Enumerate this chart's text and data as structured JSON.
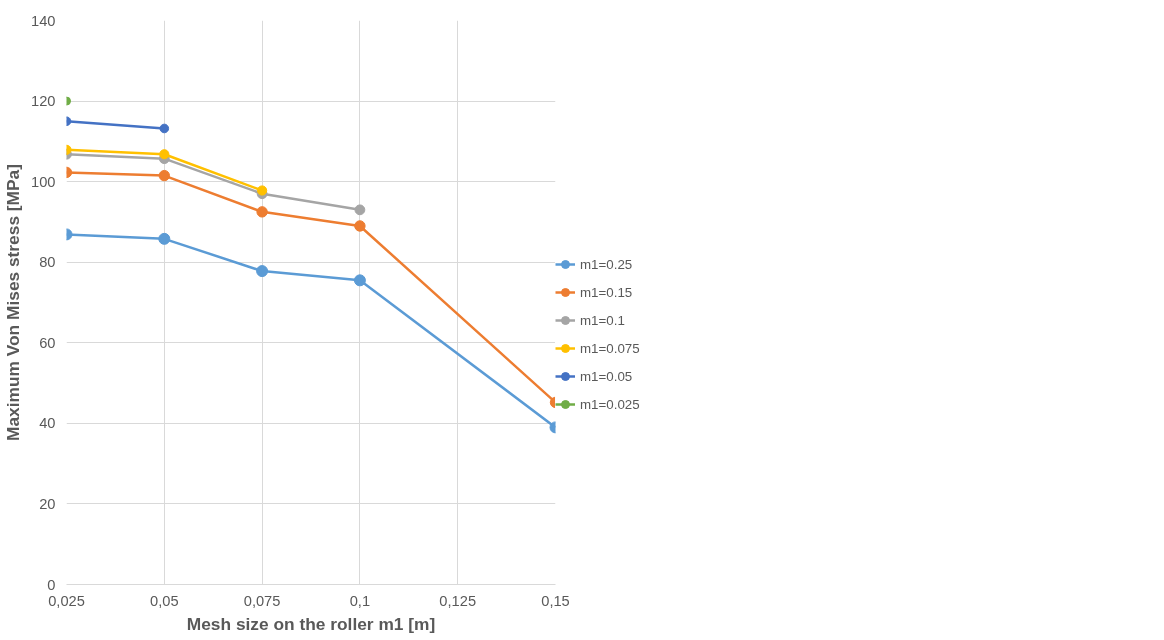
{
  "chart_data": {
    "type": "line",
    "xlabel": "Mesh size on the roller m1 [m]",
    "ylabel": "Maximum Von Mises stress [MPa]",
    "xlim": [
      0.025,
      0.15
    ],
    "xticks": [
      {
        "value": 0.025,
        "label": "0,025"
      },
      {
        "value": 0.05,
        "label": "0,05"
      },
      {
        "value": 0.075,
        "label": "0,075"
      },
      {
        "value": 0.1,
        "label": "0,1"
      },
      {
        "value": 0.125,
        "label": "0,125"
      },
      {
        "value": 0.15,
        "label": "0,15"
      }
    ],
    "ylim": [
      0,
      140
    ],
    "yticks": [
      0,
      20,
      40,
      60,
      80,
      100,
      120,
      140
    ],
    "grid": true,
    "legend": "right",
    "marker": "circle",
    "line_style": "solid",
    "series": [
      {
        "name": "m1=0.25",
        "color": "#5b9bd5",
        "x": [
          0.025,
          0.05,
          0.075,
          0.1,
          0.15
        ],
        "values": [
          86.9,
          85.8,
          77.8,
          75.5,
          39
        ]
      },
      {
        "name": "m1=0.15",
        "color": "#ed7d31",
        "x": [
          0.025,
          0.05,
          0.075,
          0.1,
          0.15
        ],
        "values": [
          102.3,
          101.5,
          92.5,
          89,
          45.2
        ]
      },
      {
        "name": "m1=0.1",
        "color": "#a5a5a5",
        "x": [
          0.025,
          0.05,
          0.075,
          0.1
        ],
        "values": [
          106.8,
          105.7,
          97,
          93
        ]
      },
      {
        "name": "m1=0.075",
        "color": "#ffc000",
        "x": [
          0.025,
          0.05,
          0.075
        ],
        "values": [
          107.9,
          106.8,
          97.8
        ]
      },
      {
        "name": "m1=0.05",
        "color": "#4472c4",
        "x": [
          0.025,
          0.05
        ],
        "values": [
          115,
          113.2
        ]
      },
      {
        "name": "m1=0.025",
        "color": "#70ad47",
        "x": [
          0.025
        ],
        "values": [
          120
        ]
      }
    ]
  }
}
